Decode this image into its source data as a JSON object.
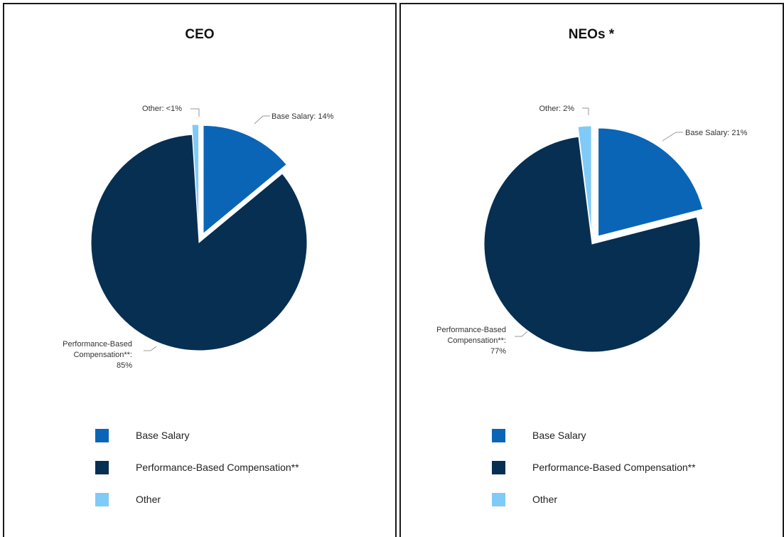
{
  "colors": {
    "base_salary": "#0a65b7",
    "performance_based": "#062f52",
    "other": "#7fcaf7"
  },
  "chart_data": [
    {
      "type": "pie",
      "title": "CEO",
      "slices": [
        {
          "name": "Base Salary",
          "value": 14,
          "label": "Base Salary: 14%",
          "exploded": true
        },
        {
          "name": "Performance-Based Compensation**",
          "value": 85,
          "label_lines": [
            "Performance-Based",
            "Compensation**:",
            "85%"
          ],
          "exploded": false
        },
        {
          "name": "Other",
          "value": 1,
          "label": "Other: <1%",
          "exploded": true
        }
      ],
      "legend": [
        "Base Salary",
        "Performance-Based Compensation**",
        "Other"
      ],
      "legend_position": "bottom"
    },
    {
      "type": "pie",
      "title": "NEOs *",
      "slices": [
        {
          "name": "Base Salary",
          "value": 21,
          "label": "Base Salary: 21%",
          "exploded": true
        },
        {
          "name": "Performance-Based Compensation**",
          "value": 77,
          "label_lines": [
            "Performance-Based",
            "Compensation**:",
            "77%"
          ],
          "exploded": false
        },
        {
          "name": "Other",
          "value": 2,
          "label": "Other: 2%",
          "exploded": true
        }
      ],
      "legend": [
        "Base Salary",
        "Performance-Based Compensation**",
        "Other"
      ],
      "legend_position": "bottom"
    }
  ]
}
